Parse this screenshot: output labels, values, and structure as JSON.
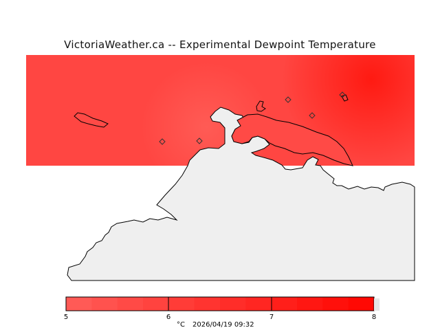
{
  "title": "VictoriaWeather.ca -- Experimental Dewpoint Temperature",
  "colors": {
    "field_low": "#ff4a44",
    "field_mid": "#ff3a33",
    "field_high": "#ff1a12",
    "land": "#efefef",
    "coast": "#000000",
    "legend_stops": [
      "#ff5a56",
      "#ff524e",
      "#ff4a46",
      "#ff433f",
      "#ff3c37",
      "#ff3430",
      "#ff2d29",
      "#ff2622",
      "#ff1f1a",
      "#ff1712",
      "#ff100b",
      "#ff0904"
    ]
  },
  "icons": {
    "station": "diamond-icon"
  },
  "legend": {
    "ticks": [
      "5",
      "6",
      "7",
      "8"
    ],
    "unit": "°C",
    "timestamp": "2026/04/19 09:32"
  }
}
